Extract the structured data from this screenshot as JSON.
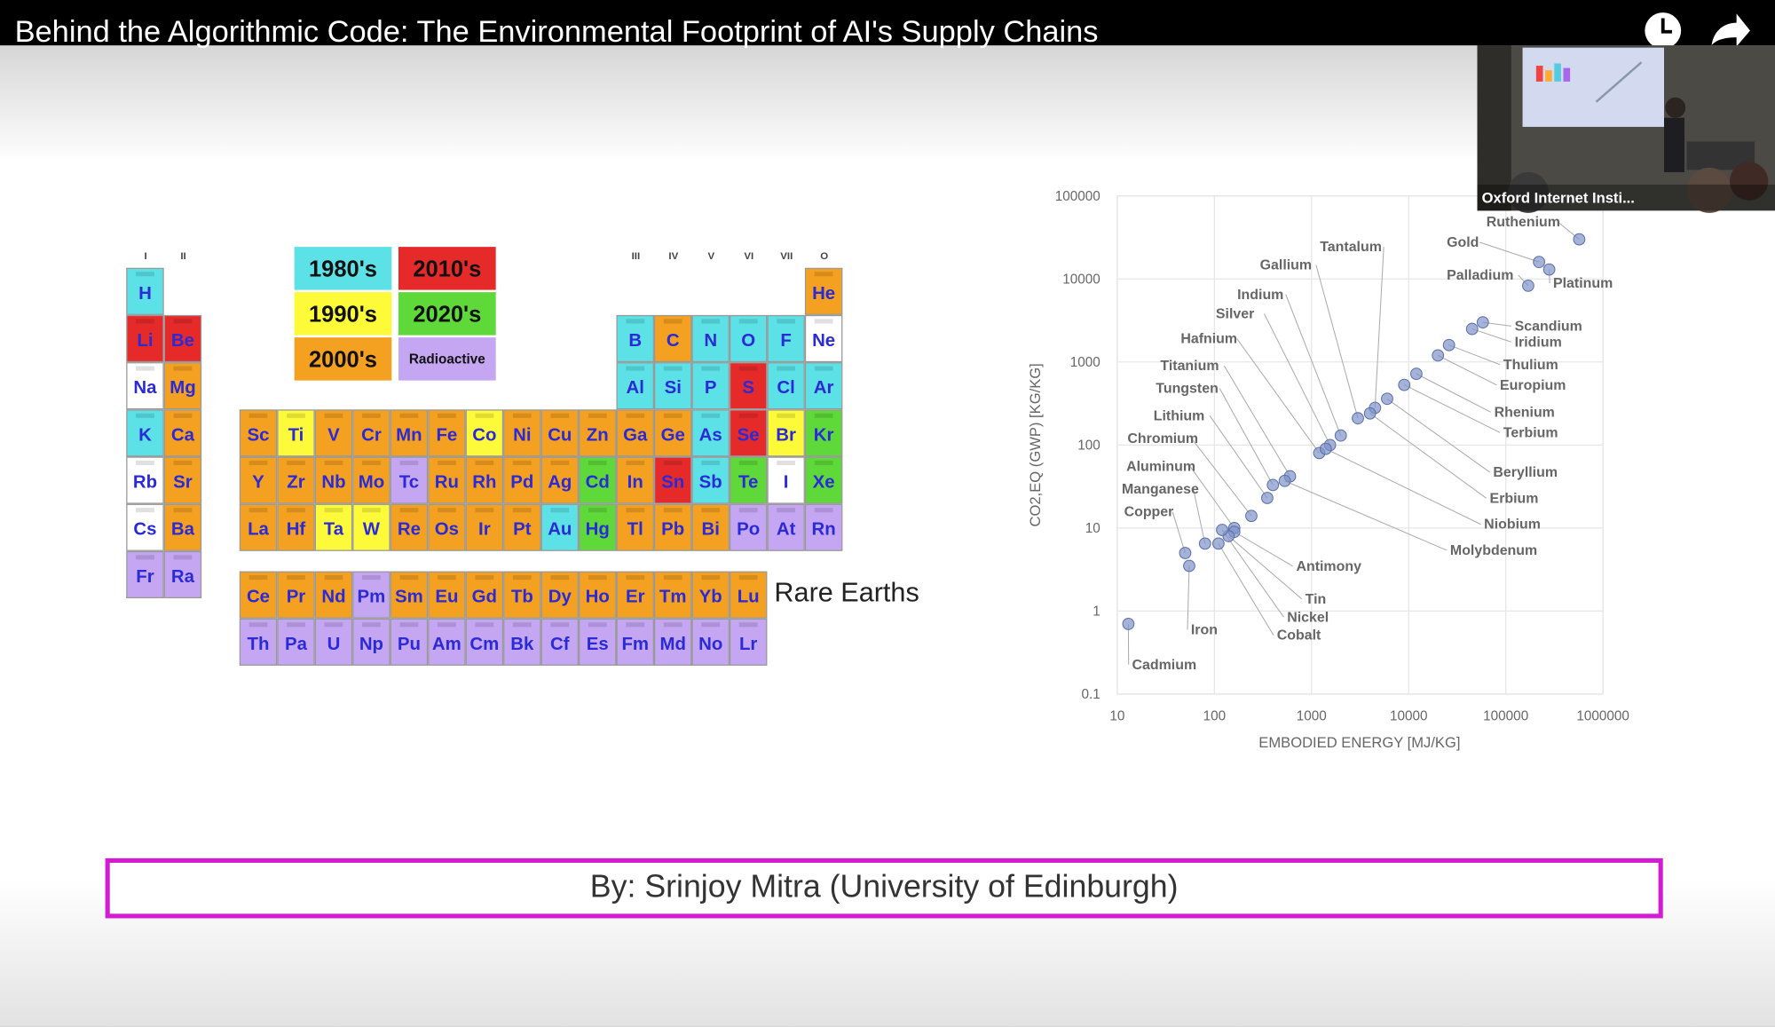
{
  "video": {
    "title": "Behind the Algorithmic Code: The Environmental Footprint of AI's Supply Chains",
    "pip_label": "Oxford Internet Insti..."
  },
  "periodic_table": {
    "group_labels": [
      "I",
      "II",
      null,
      null,
      null,
      null,
      null,
      null,
      null,
      null,
      null,
      null,
      "III",
      "IV",
      "V",
      "VI",
      "VII",
      "O"
    ],
    "legend": [
      {
        "label": "1980's",
        "color": "#5ce1e6"
      },
      {
        "label": "2010's",
        "color": "#e62a2a"
      },
      {
        "label": "1990's",
        "color": "#fdfa3a"
      },
      {
        "label": "2020's",
        "color": "#5fd93a"
      },
      {
        "label": "2000's",
        "color": "#f4a020"
      },
      {
        "label": "Radioactive",
        "color": "#c4a6f2"
      }
    ],
    "rows": [
      [
        {
          "symbol": "H",
          "color": "#5ce1e6"
        },
        null,
        null,
        null,
        null,
        null,
        null,
        null,
        null,
        null,
        null,
        null,
        null,
        null,
        null,
        null,
        null,
        {
          "symbol": "He",
          "color": "#f4a020"
        }
      ],
      [
        {
          "symbol": "Li",
          "color": "#e62a2a"
        },
        {
          "symbol": "Be",
          "color": "#e62a2a"
        },
        null,
        null,
        null,
        null,
        null,
        null,
        null,
        null,
        null,
        null,
        {
          "symbol": "B",
          "color": "#5ce1e6"
        },
        {
          "symbol": "C",
          "color": "#f4a020"
        },
        {
          "symbol": "N",
          "color": "#5ce1e6"
        },
        {
          "symbol": "O",
          "color": "#5ce1e6"
        },
        {
          "symbol": "F",
          "color": "#5ce1e6"
        },
        {
          "symbol": "Ne",
          "color": "#ffffff"
        }
      ],
      [
        {
          "symbol": "Na",
          "color": "#ffffff"
        },
        {
          "symbol": "Mg",
          "color": "#f4a020"
        },
        null,
        null,
        null,
        null,
        null,
        null,
        null,
        null,
        null,
        null,
        {
          "symbol": "Al",
          "color": "#5ce1e6"
        },
        {
          "symbol": "Si",
          "color": "#5ce1e6"
        },
        {
          "symbol": "P",
          "color": "#5ce1e6"
        },
        {
          "symbol": "S",
          "color": "#e62a2a"
        },
        {
          "symbol": "Cl",
          "color": "#5ce1e6"
        },
        {
          "symbol": "Ar",
          "color": "#5ce1e6"
        }
      ],
      [
        {
          "symbol": "K",
          "color": "#5ce1e6"
        },
        {
          "symbol": "Ca",
          "color": "#f4a020"
        },
        {
          "symbol": "Sc",
          "color": "#f4a020"
        },
        {
          "symbol": "Ti",
          "color": "#fdfa3a"
        },
        {
          "symbol": "V",
          "color": "#f4a020"
        },
        {
          "symbol": "Cr",
          "color": "#f4a020"
        },
        {
          "symbol": "Mn",
          "color": "#f4a020"
        },
        {
          "symbol": "Fe",
          "color": "#f4a020"
        },
        {
          "symbol": "Co",
          "color": "#fdfa3a"
        },
        {
          "symbol": "Ni",
          "color": "#f4a020"
        },
        {
          "symbol": "Cu",
          "color": "#f4a020"
        },
        {
          "symbol": "Zn",
          "color": "#f4a020"
        },
        {
          "symbol": "Ga",
          "color": "#f4a020"
        },
        {
          "symbol": "Ge",
          "color": "#f4a020"
        },
        {
          "symbol": "As",
          "color": "#5ce1e6"
        },
        {
          "symbol": "Se",
          "color": "#e62a2a"
        },
        {
          "symbol": "Br",
          "color": "#fdfa3a"
        },
        {
          "symbol": "Kr",
          "color": "#5fd93a"
        }
      ],
      [
        {
          "symbol": "Rb",
          "color": "#ffffff"
        },
        {
          "symbol": "Sr",
          "color": "#f4a020"
        },
        {
          "symbol": "Y",
          "color": "#f4a020"
        },
        {
          "symbol": "Zr",
          "color": "#f4a020"
        },
        {
          "symbol": "Nb",
          "color": "#f4a020"
        },
        {
          "symbol": "Mo",
          "color": "#f4a020"
        },
        {
          "symbol": "Tc",
          "color": "#c4a6f2"
        },
        {
          "symbol": "Ru",
          "color": "#f4a020"
        },
        {
          "symbol": "Rh",
          "color": "#f4a020"
        },
        {
          "symbol": "Pd",
          "color": "#f4a020"
        },
        {
          "symbol": "Ag",
          "color": "#f4a020"
        },
        {
          "symbol": "Cd",
          "color": "#5fd93a"
        },
        {
          "symbol": "In",
          "color": "#f4a020"
        },
        {
          "symbol": "Sn",
          "color": "#e62a2a"
        },
        {
          "symbol": "Sb",
          "color": "#5ce1e6"
        },
        {
          "symbol": "Te",
          "color": "#5fd93a"
        },
        {
          "symbol": "I",
          "color": "#ffffff"
        },
        {
          "symbol": "Xe",
          "color": "#5fd93a"
        }
      ],
      [
        {
          "symbol": "Cs",
          "color": "#ffffff"
        },
        {
          "symbol": "Ba",
          "color": "#f4a020"
        },
        {
          "symbol": "La",
          "color": "#f4a020"
        },
        {
          "symbol": "Hf",
          "color": "#f4a020"
        },
        {
          "symbol": "Ta",
          "color": "#fdfa3a"
        },
        {
          "symbol": "W",
          "color": "#fdfa3a"
        },
        {
          "symbol": "Re",
          "color": "#f4a020"
        },
        {
          "symbol": "Os",
          "color": "#f4a020"
        },
        {
          "symbol": "Ir",
          "color": "#f4a020"
        },
        {
          "symbol": "Pt",
          "color": "#f4a020"
        },
        {
          "symbol": "Au",
          "color": "#5ce1e6"
        },
        {
          "symbol": "Hg",
          "color": "#5fd93a"
        },
        {
          "symbol": "Tl",
          "color": "#f4a020"
        },
        {
          "symbol": "Pb",
          "color": "#f4a020"
        },
        {
          "symbol": "Bi",
          "color": "#f4a020"
        },
        {
          "symbol": "Po",
          "color": "#c4a6f2"
        },
        {
          "symbol": "At",
          "color": "#c4a6f2"
        },
        {
          "symbol": "Rn",
          "color": "#c4a6f2"
        }
      ],
      [
        {
          "symbol": "Fr",
          "color": "#c4a6f2"
        },
        {
          "symbol": "Ra",
          "color": "#c4a6f2"
        },
        null,
        null,
        null,
        null,
        null,
        null,
        null,
        null,
        null,
        null,
        null,
        null,
        null,
        null,
        null,
        null
      ]
    ],
    "rare_earths_label": "Rare Earths",
    "rare_earth_rows": [
      [
        {
          "symbol": "Ce",
          "color": "#f4a020"
        },
        {
          "symbol": "Pr",
          "color": "#f4a020"
        },
        {
          "symbol": "Nd",
          "color": "#f4a020"
        },
        {
          "symbol": "Pm",
          "color": "#c4a6f2"
        },
        {
          "symbol": "Sm",
          "color": "#f4a020"
        },
        {
          "symbol": "Eu",
          "color": "#f4a020"
        },
        {
          "symbol": "Gd",
          "color": "#f4a020"
        },
        {
          "symbol": "Tb",
          "color": "#f4a020"
        },
        {
          "symbol": "Dy",
          "color": "#f4a020"
        },
        {
          "symbol": "Ho",
          "color": "#f4a020"
        },
        {
          "symbol": "Er",
          "color": "#f4a020"
        },
        {
          "symbol": "Tm",
          "color": "#f4a020"
        },
        {
          "symbol": "Yb",
          "color": "#f4a020"
        },
        {
          "symbol": "Lu",
          "color": "#f4a020"
        }
      ],
      [
        {
          "symbol": "Th",
          "color": "#c4a6f2"
        },
        {
          "symbol": "Pa",
          "color": "#c4a6f2"
        },
        {
          "symbol": "U",
          "color": "#c4a6f2"
        },
        {
          "symbol": "Np",
          "color": "#c4a6f2"
        },
        {
          "symbol": "Pu",
          "color": "#c4a6f2"
        },
        {
          "symbol": "Am",
          "color": "#c4a6f2"
        },
        {
          "symbol": "Cm",
          "color": "#c4a6f2"
        },
        {
          "symbol": "Bk",
          "color": "#c4a6f2"
        },
        {
          "symbol": "Cf",
          "color": "#c4a6f2"
        },
        {
          "symbol": "Es",
          "color": "#c4a6f2"
        },
        {
          "symbol": "Fm",
          "color": "#c4a6f2"
        },
        {
          "symbol": "Md",
          "color": "#c4a6f2"
        },
        {
          "symbol": "No",
          "color": "#c4a6f2"
        },
        {
          "symbol": "Lr",
          "color": "#c4a6f2"
        }
      ]
    ]
  },
  "chart_data": {
    "type": "scatter",
    "x_label": "EMBODIED ENERGY [MJ/KG]",
    "y_label": "CO2,EQ (GWP) [KG/KG]",
    "xlog": true,
    "ylog": true,
    "grid": true,
    "color": "#7f93c9",
    "xlim": [
      10,
      1000000
    ],
    "xticks": [
      10,
      100,
      1000,
      10000,
      100000,
      1000000
    ],
    "ylim": [
      0.1,
      100000
    ],
    "yticks": [
      0.1,
      1,
      10,
      100,
      1000,
      10000,
      100000
    ],
    "points": [
      {
        "label": "Cadmium",
        "x": 13,
        "y": 0.7
      },
      {
        "label": "Iron",
        "x": 55,
        "y": 3.5
      },
      {
        "label": "Copper",
        "x": 50,
        "y": 5
      },
      {
        "label": "Manganese",
        "x": 80,
        "y": 6.5
      },
      {
        "label": "Aluminum",
        "x": 160,
        "y": 10
      },
      {
        "label": "Chromium",
        "x": 240,
        "y": 14
      },
      {
        "label": "Lithium",
        "x": 350,
        "y": 23
      },
      {
        "label": "Tungsten",
        "x": 400,
        "y": 33
      },
      {
        "label": "Titanium",
        "x": 600,
        "y": 42
      },
      {
        "label": "Hafnium",
        "x": 1200,
        "y": 80
      },
      {
        "label": "Silver",
        "x": 1550,
        "y": 100
      },
      {
        "label": "Indium",
        "x": 2000,
        "y": 130
      },
      {
        "label": "Gallium",
        "x": 3000,
        "y": 210
      },
      {
        "label": "Tantalum",
        "x": 4500,
        "y": 280
      },
      {
        "label": "Gold",
        "x": 220000,
        "y": 16000
      },
      {
        "label": "Ruthenium",
        "x": 570000,
        "y": 30000
      },
      {
        "label": "Palladium",
        "x": 170000,
        "y": 8300
      },
      {
        "label": "Platinum",
        "x": 280000,
        "y": 13000
      },
      {
        "label": "Scandium",
        "x": 58000,
        "y": 3000
      },
      {
        "label": "Iridium",
        "x": 45000,
        "y": 2500
      },
      {
        "label": "Thulium",
        "x": 26000,
        "y": 1600
      },
      {
        "label": "Europium",
        "x": 20000,
        "y": 1200
      },
      {
        "label": "Rhenium",
        "x": 12000,
        "y": 720
      },
      {
        "label": "Terbium",
        "x": 9000,
        "y": 530
      },
      {
        "label": "Beryllium",
        "x": 6000,
        "y": 360
      },
      {
        "label": "Erbium",
        "x": 4000,
        "y": 240
      },
      {
        "label": "Niobium",
        "x": 1400,
        "y": 90
      },
      {
        "label": "Molybdenum",
        "x": 530,
        "y": 37
      },
      {
        "label": "Antimony",
        "x": 160,
        "y": 9
      },
      {
        "label": "Tin",
        "x": 140,
        "y": 8
      },
      {
        "label": "Nickel",
        "x": 120,
        "y": 9.5
      },
      {
        "label": "Cobalt",
        "x": 110,
        "y": 6.5
      }
    ]
  },
  "byline": "By: Srinjoy Mitra (University of Edinburgh)"
}
